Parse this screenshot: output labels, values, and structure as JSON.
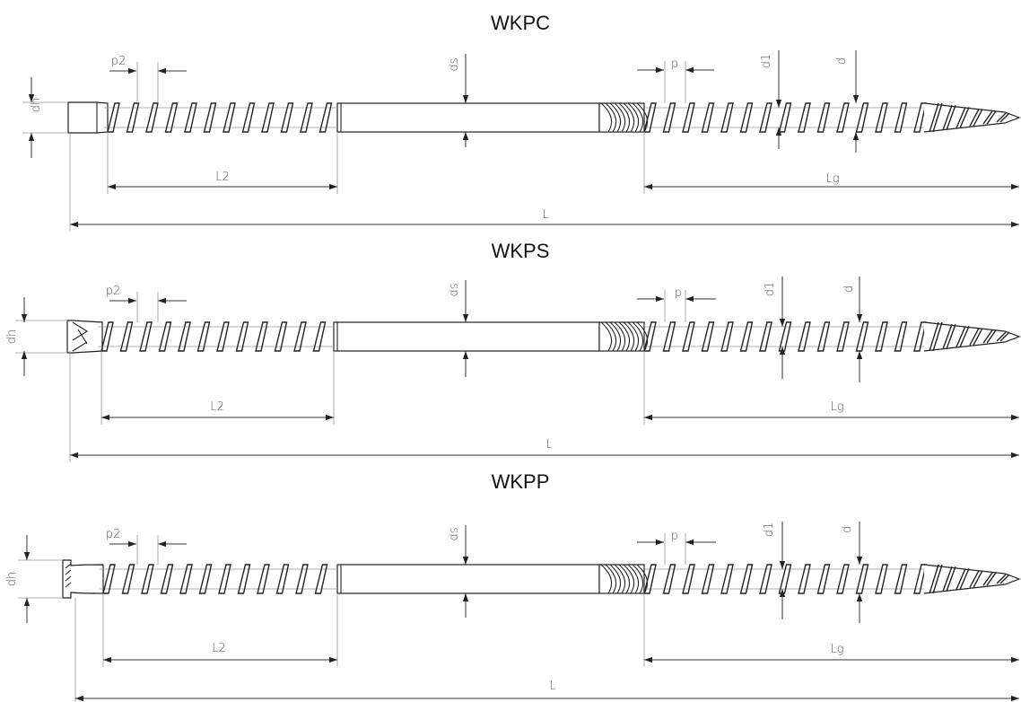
{
  "diagram": {
    "screws": [
      {
        "title": "WKPC",
        "head_type": "cylindrical",
        "labels": {
          "dh": "dh",
          "p2": "p2",
          "ds": "ds",
          "p": "p",
          "d1": "d1",
          "d": "d",
          "L2": "L2",
          "Lg": "Lg",
          "L": "L"
        }
      },
      {
        "title": "WKPS",
        "head_type": "countersunk",
        "labels": {
          "dh": "dh",
          "p2": "p2",
          "ds": "ds",
          "p": "p",
          "d1": "d1",
          "d": "d",
          "L2": "L2",
          "Lg": "Lg",
          "L": "L"
        }
      },
      {
        "title": "WKPP",
        "head_type": "pan-flat",
        "labels": {
          "dh": "dh",
          "p2": "p2",
          "ds": "ds",
          "p": "p",
          "d1": "d1",
          "d": "d",
          "L2": "L2",
          "Lg": "Lg",
          "L": "L"
        }
      }
    ]
  }
}
